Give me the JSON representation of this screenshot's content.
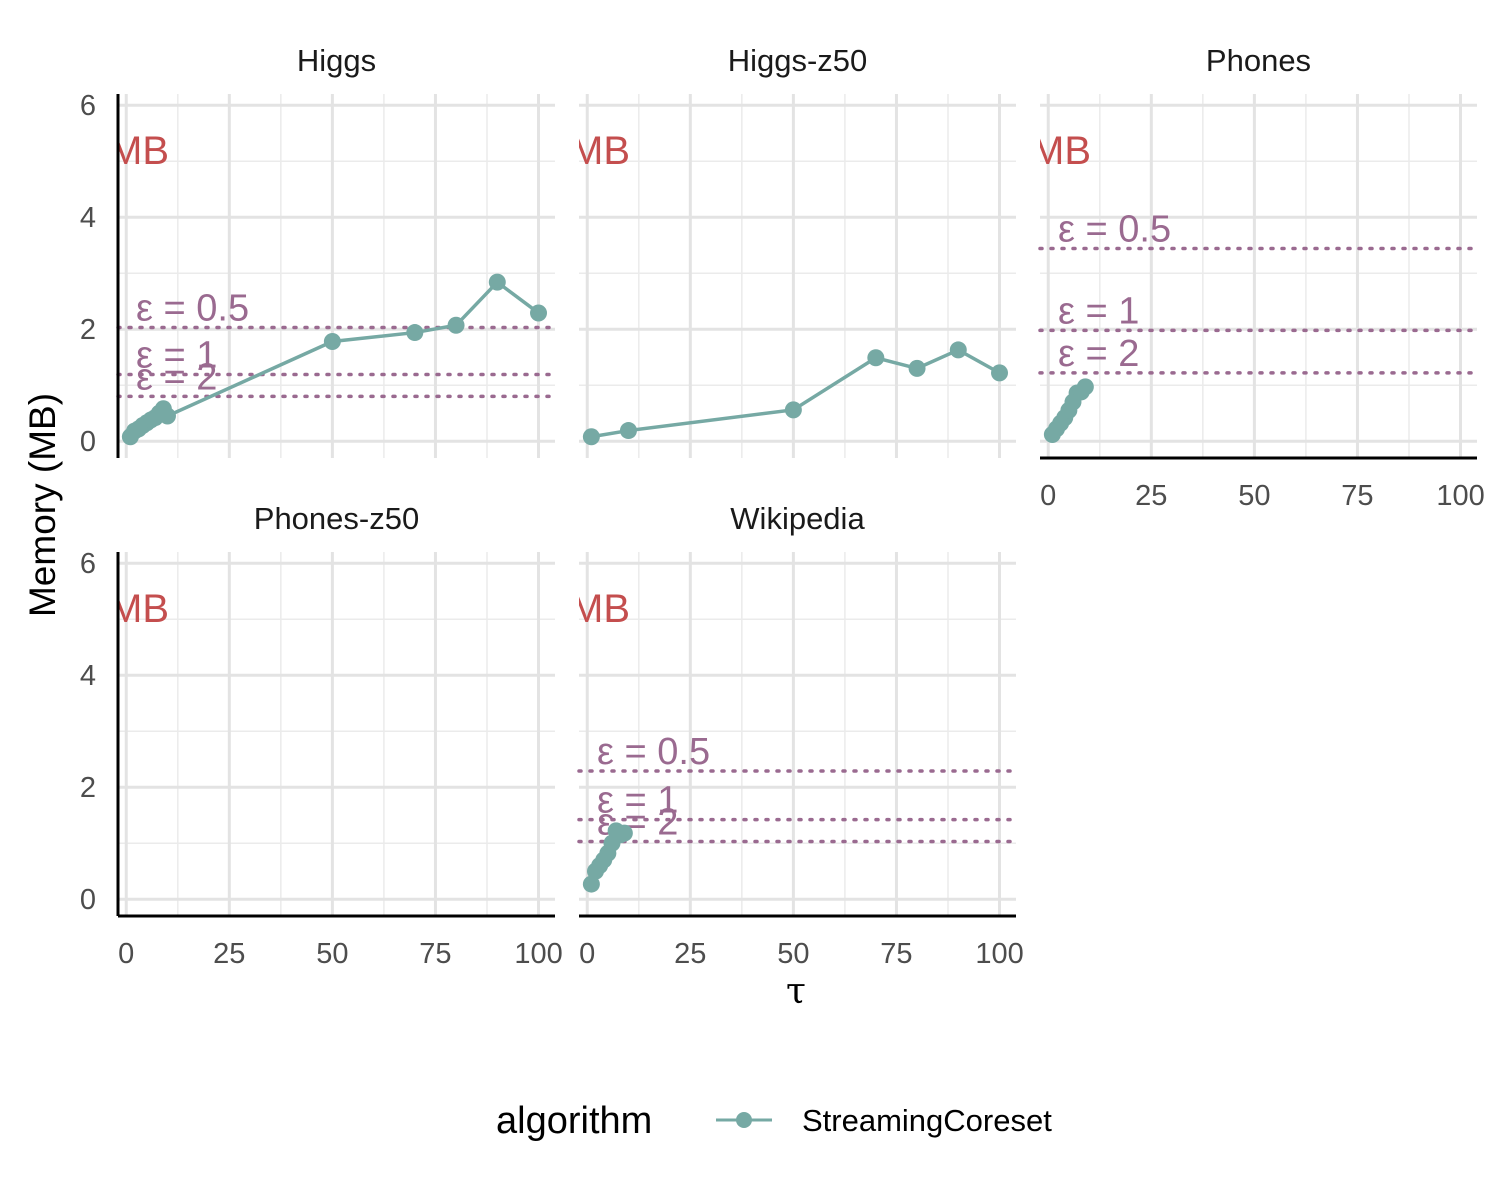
{
  "chart_data": {
    "type": "line",
    "xlabel": "τ",
    "ylabel": "Memory (MB)",
    "xlim": [
      -2,
      104
    ],
    "ylim": [
      -0.3,
      6.2
    ],
    "x_ticks": [
      0,
      25,
      50,
      75,
      100
    ],
    "y_ticks": [
      0,
      2,
      4,
      6
    ],
    "grid": true,
    "colors": {
      "series": "#76a9a4",
      "threshold": "#9a6a90",
      "memory_label": "#c44e4e"
    },
    "memory_label_text": "MB",
    "legend": {
      "title": "algorithm",
      "position": "bottom",
      "entries": [
        "StreamingCoreset"
      ]
    },
    "panels": [
      {
        "name": "Higgs",
        "series": [
          {
            "name": "StreamingCoreset",
            "points": [
              [
                1,
                0.08
              ],
              [
                2,
                0.18
              ],
              [
                3,
                0.22
              ],
              [
                4,
                0.28
              ],
              [
                5,
                0.33
              ],
              [
                6,
                0.38
              ],
              [
                7,
                0.42
              ],
              [
                8,
                0.5
              ],
              [
                9,
                0.58
              ],
              [
                10,
                0.45
              ],
              [
                50,
                1.78
              ],
              [
                70,
                1.94
              ],
              [
                80,
                2.07
              ],
              [
                90,
                2.84
              ],
              [
                100,
                2.29
              ]
            ]
          }
        ],
        "thresholds": [
          {
            "label": "ε = 0.5",
            "y": 2.03
          },
          {
            "label": "ε = 1",
            "y": 1.19
          },
          {
            "label": "ε = 2",
            "y": 0.8
          }
        ]
      },
      {
        "name": "Higgs-z50",
        "series": [
          {
            "name": "StreamingCoreset",
            "points": [
              [
                1,
                0.08
              ],
              [
                10,
                0.19
              ],
              [
                50,
                0.56
              ],
              [
                70,
                1.49
              ],
              [
                80,
                1.3
              ],
              [
                90,
                1.63
              ],
              [
                100,
                1.22
              ]
            ]
          }
        ],
        "thresholds": []
      },
      {
        "name": "Phones",
        "series": [
          {
            "name": "StreamingCoreset",
            "points": [
              [
                1,
                0.12
              ],
              [
                2,
                0.22
              ],
              [
                3,
                0.32
              ],
              [
                4,
                0.42
              ],
              [
                5,
                0.55
              ],
              [
                6,
                0.7
              ],
              [
                7,
                0.86
              ],
              [
                8,
                0.88
              ],
              [
                9,
                0.97
              ]
            ]
          }
        ],
        "thresholds": [
          {
            "label": "ε = 0.5",
            "y": 3.44
          },
          {
            "label": "ε = 1",
            "y": 1.98
          },
          {
            "label": "ε = 2",
            "y": 1.22
          }
        ]
      },
      {
        "name": "Phones-z50",
        "series": [
          {
            "name": "StreamingCoreset",
            "points": []
          }
        ],
        "thresholds": []
      },
      {
        "name": "Wikipedia",
        "series": [
          {
            "name": "StreamingCoreset",
            "points": [
              [
                1,
                0.27
              ],
              [
                2,
                0.5
              ],
              [
                3,
                0.6
              ],
              [
                4,
                0.7
              ],
              [
                5,
                0.82
              ],
              [
                6,
                1.0
              ],
              [
                7,
                1.22
              ],
              [
                8,
                1.15
              ],
              [
                9,
                1.18
              ]
            ]
          }
        ],
        "thresholds": [
          {
            "label": "ε = 0.5",
            "y": 2.29
          },
          {
            "label": "ε = 1",
            "y": 1.42
          },
          {
            "label": "ε = 2",
            "y": 1.03
          }
        ]
      }
    ]
  }
}
